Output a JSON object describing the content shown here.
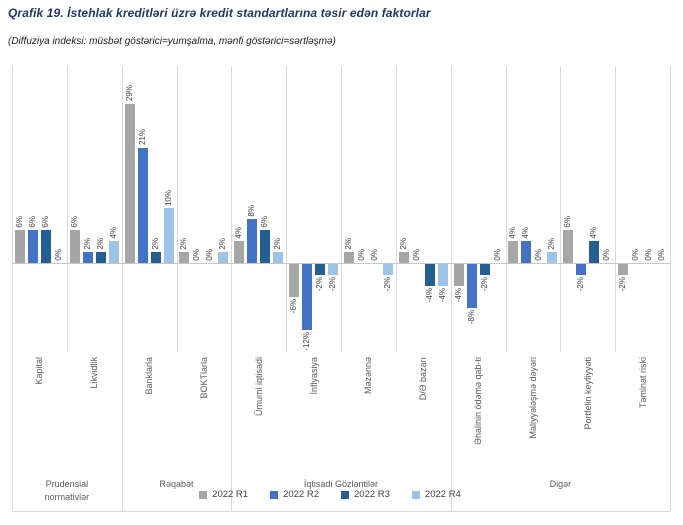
{
  "chart_data": {
    "type": "bar",
    "title": "Qrafik 19. İstehlak kreditləri üzrə kredit standartlarına təsir edən faktorlar",
    "subtitle": "(Diffuziya indeksi: müsbət göstərici=yumşalma, mənfi göstərici=sərtləşmə)",
    "value_unit": "%",
    "ylim": [
      -16,
      36
    ],
    "grid": "vertical-category-separators-only",
    "data_labels": "rotated 90deg, format value%",
    "category_label_rotation": 90,
    "legend_position": "bottom-center",
    "categories": [
      "Kapital",
      "Likvidlik",
      "Banklarla",
      "BOKTlarla",
      "Ümumi iqtisadi",
      "İnflyasiya",
      "Məzənnə",
      "D/Ə bazarı",
      "Əhalinin ödəmə qab-ti",
      "Maliyyələşmə dəyəri",
      "Portfelin keyfiyyəti",
      "Təminat riski"
    ],
    "category_groups": [
      {
        "label": "Prudensial normativlər",
        "categories": [
          "Kapital",
          "Likvidlik"
        ]
      },
      {
        "label": "Rəqabət",
        "categories": [
          "Banklarla",
          "BOKTlarla"
        ]
      },
      {
        "label": "İqtisadi Gözləntilər",
        "categories": [
          "Ümumi iqtisadi",
          "İnflyasiya",
          "Məzənnə",
          "D/Ə bazarı"
        ]
      },
      {
        "label": "Digər",
        "categories": [
          "Əhalinin ödəmə qab-ti",
          "Maliyyələşmə dəyəri",
          "Portfelin keyfiyyəti",
          "Təminat riski"
        ]
      }
    ],
    "series": [
      {
        "name": "2022 R1",
        "color": "#A6A6A6",
        "values": [
          6,
          6,
          29,
          2,
          4,
          -6,
          2,
          2,
          -4,
          4,
          6,
          -2
        ]
      },
      {
        "name": "2022 R2",
        "color": "#4472C4",
        "values": [
          6,
          2,
          21,
          0,
          8,
          -12,
          0,
          0,
          -8,
          4,
          -2,
          0
        ]
      },
      {
        "name": "2022 R3",
        "color": "#255E91",
        "values": [
          6,
          2,
          2,
          0,
          6,
          -2,
          0,
          -4,
          -2,
          0,
          4,
          0
        ]
      },
      {
        "name": "2022 R4",
        "color": "#9DC3E6",
        "values": [
          0,
          4,
          10,
          2,
          2,
          -2,
          -2,
          -4,
          0,
          2,
          0,
          0
        ]
      }
    ]
  },
  "colors": {
    "title": "#1F3864",
    "gridline": "#D9D9D9",
    "zero_axis": "#C6C6C6",
    "category_text": "#595959",
    "value_text": "#404040"
  }
}
